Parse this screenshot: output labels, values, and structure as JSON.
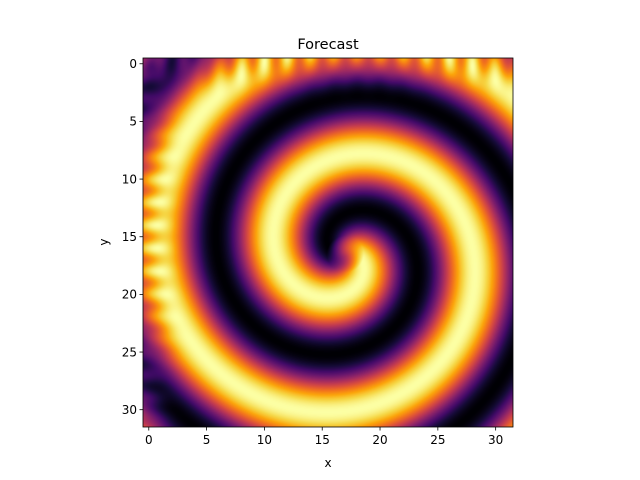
{
  "chart_data": {
    "type": "heatmap",
    "title": "Forecast",
    "xlabel": "x",
    "ylabel": "y",
    "grid": false,
    "colormap": "inferno",
    "y_axis_inverted": true,
    "xlim": [
      -0.5,
      31.5
    ],
    "ylim": [
      31.5,
      -0.5
    ],
    "xticks": [
      0,
      5,
      10,
      15,
      20,
      25,
      30
    ],
    "yticks": [
      0,
      5,
      10,
      15,
      20,
      25,
      30
    ],
    "grid_size": [
      32,
      32
    ],
    "spiral_center": [
      17,
      16.5
    ],
    "colors": {
      "low": "#000004",
      "high": "#fcffa4"
    }
  }
}
